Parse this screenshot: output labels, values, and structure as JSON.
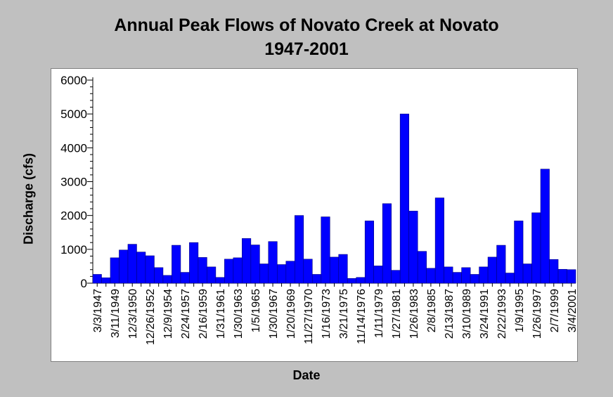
{
  "chart_data": {
    "type": "bar",
    "title": "Annual Peak Flows of Novato Creek at Novato",
    "subtitle": "1947-2001",
    "xlabel": "Date",
    "ylabel": "Discharge (cfs)",
    "ylim": [
      0,
      6000
    ],
    "yticks": [
      "0",
      "1000",
      "2000",
      "3000",
      "4000",
      "5000",
      "6000"
    ],
    "grid": false,
    "bar_color": "#0000ff",
    "x_tick_labels": [
      "3/3/1947",
      "3/11/1949",
      "12/3/1950",
      "12/26/1952",
      "12/9/1954",
      "2/24/1957",
      "2/16/1959",
      "1/31/1961",
      "1/30/1963",
      "1/5/1965",
      "1/30/1967",
      "1/20/1969",
      "11/27/1970",
      "1/16/1973",
      "3/21/1975",
      "11/14/1976",
      "1/11/1979",
      "1/27/1981",
      "1/26/1983",
      "2/8/1985",
      "2/13/1987",
      "3/10/1989",
      "3/24/1991",
      "2/22/1993",
      "1/9/1995",
      "1/26/1997",
      "2/7/1999",
      "3/4/2001"
    ],
    "values": [
      260,
      160,
      750,
      980,
      1150,
      920,
      810,
      460,
      230,
      1120,
      320,
      1200,
      760,
      480,
      170,
      710,
      750,
      1320,
      1130,
      570,
      1230,
      550,
      650,
      2000,
      710,
      260,
      1960,
      770,
      850,
      140,
      170,
      1840,
      510,
      2350,
      380,
      5000,
      2130,
      940,
      440,
      2520,
      480,
      320,
      460,
      260,
      480,
      770,
      1120,
      300,
      1840,
      570,
      2080,
      3370,
      700,
      410,
      400
    ]
  }
}
